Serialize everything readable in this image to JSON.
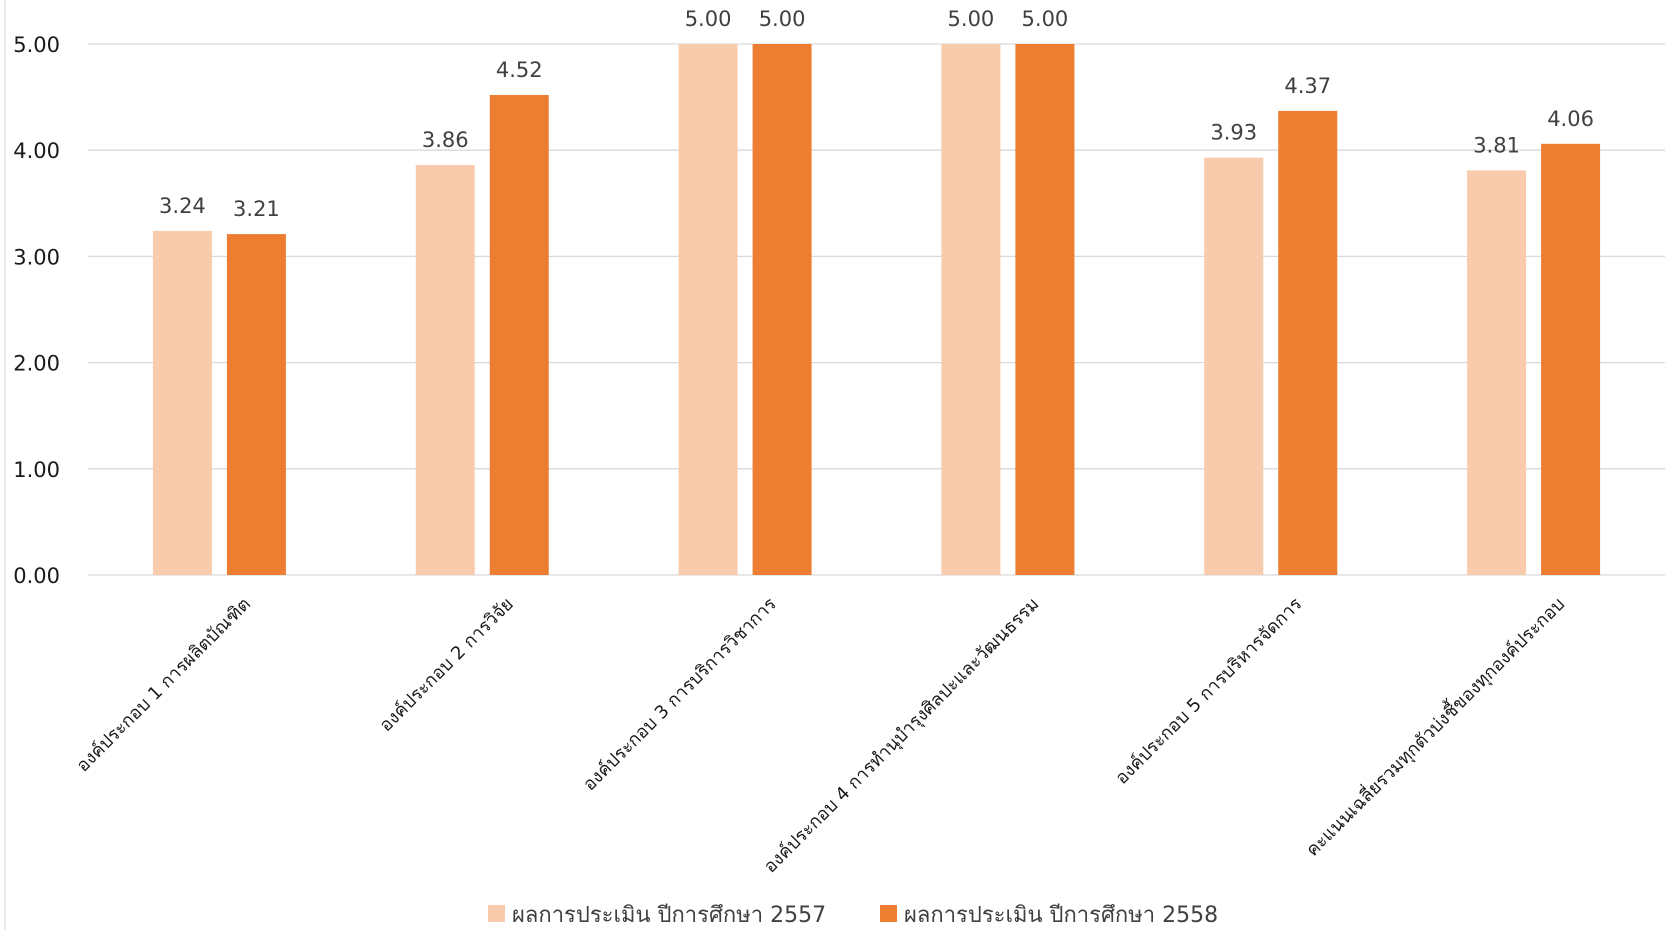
{
  "chart_data": {
    "type": "bar",
    "categories": [
      "องค์ประกอบ 1 การผลิตบัณฑิต",
      "องค์ประกอบ 2 การวิจัย",
      "องค์ประกอบ 3 การบริการวิชาการ",
      "องค์ประกอบ 4 การทำนุบำรุงศิลปะและวัฒนธรรม",
      "องค์ประกอบ 5 การบริหารจัดการ",
      "คะแนนเฉลี่ยรวมทุกตัวบ่งชี้ของทุกองค์ประกอบ"
    ],
    "series": [
      {
        "name": "ผลการประเมิน ปีการศึกษา 2557",
        "color": "#f8cbad",
        "values": [
          3.24,
          3.86,
          5.0,
          5.0,
          3.93,
          3.81
        ],
        "labels": [
          "3.24",
          "3.86",
          "5.00",
          "5.00",
          "3.93",
          "3.81"
        ]
      },
      {
        "name": "ผลการประเมิน ปีการศึกษา 2558",
        "color": "#ed7d31",
        "values": [
          3.21,
          4.52,
          5.0,
          5.0,
          4.37,
          4.06
        ],
        "labels": [
          "3.21",
          "4.52",
          "5.00",
          "5.00",
          "4.37",
          "4.06"
        ]
      }
    ],
    "y_ticks": [
      "0.00",
      "1.00",
      "2.00",
      "3.00",
      "4.00",
      "5.00"
    ],
    "ylim": [
      0,
      5
    ],
    "grid": true,
    "legend_position": "bottom",
    "title": "",
    "xlabel": "",
    "ylabel": ""
  }
}
